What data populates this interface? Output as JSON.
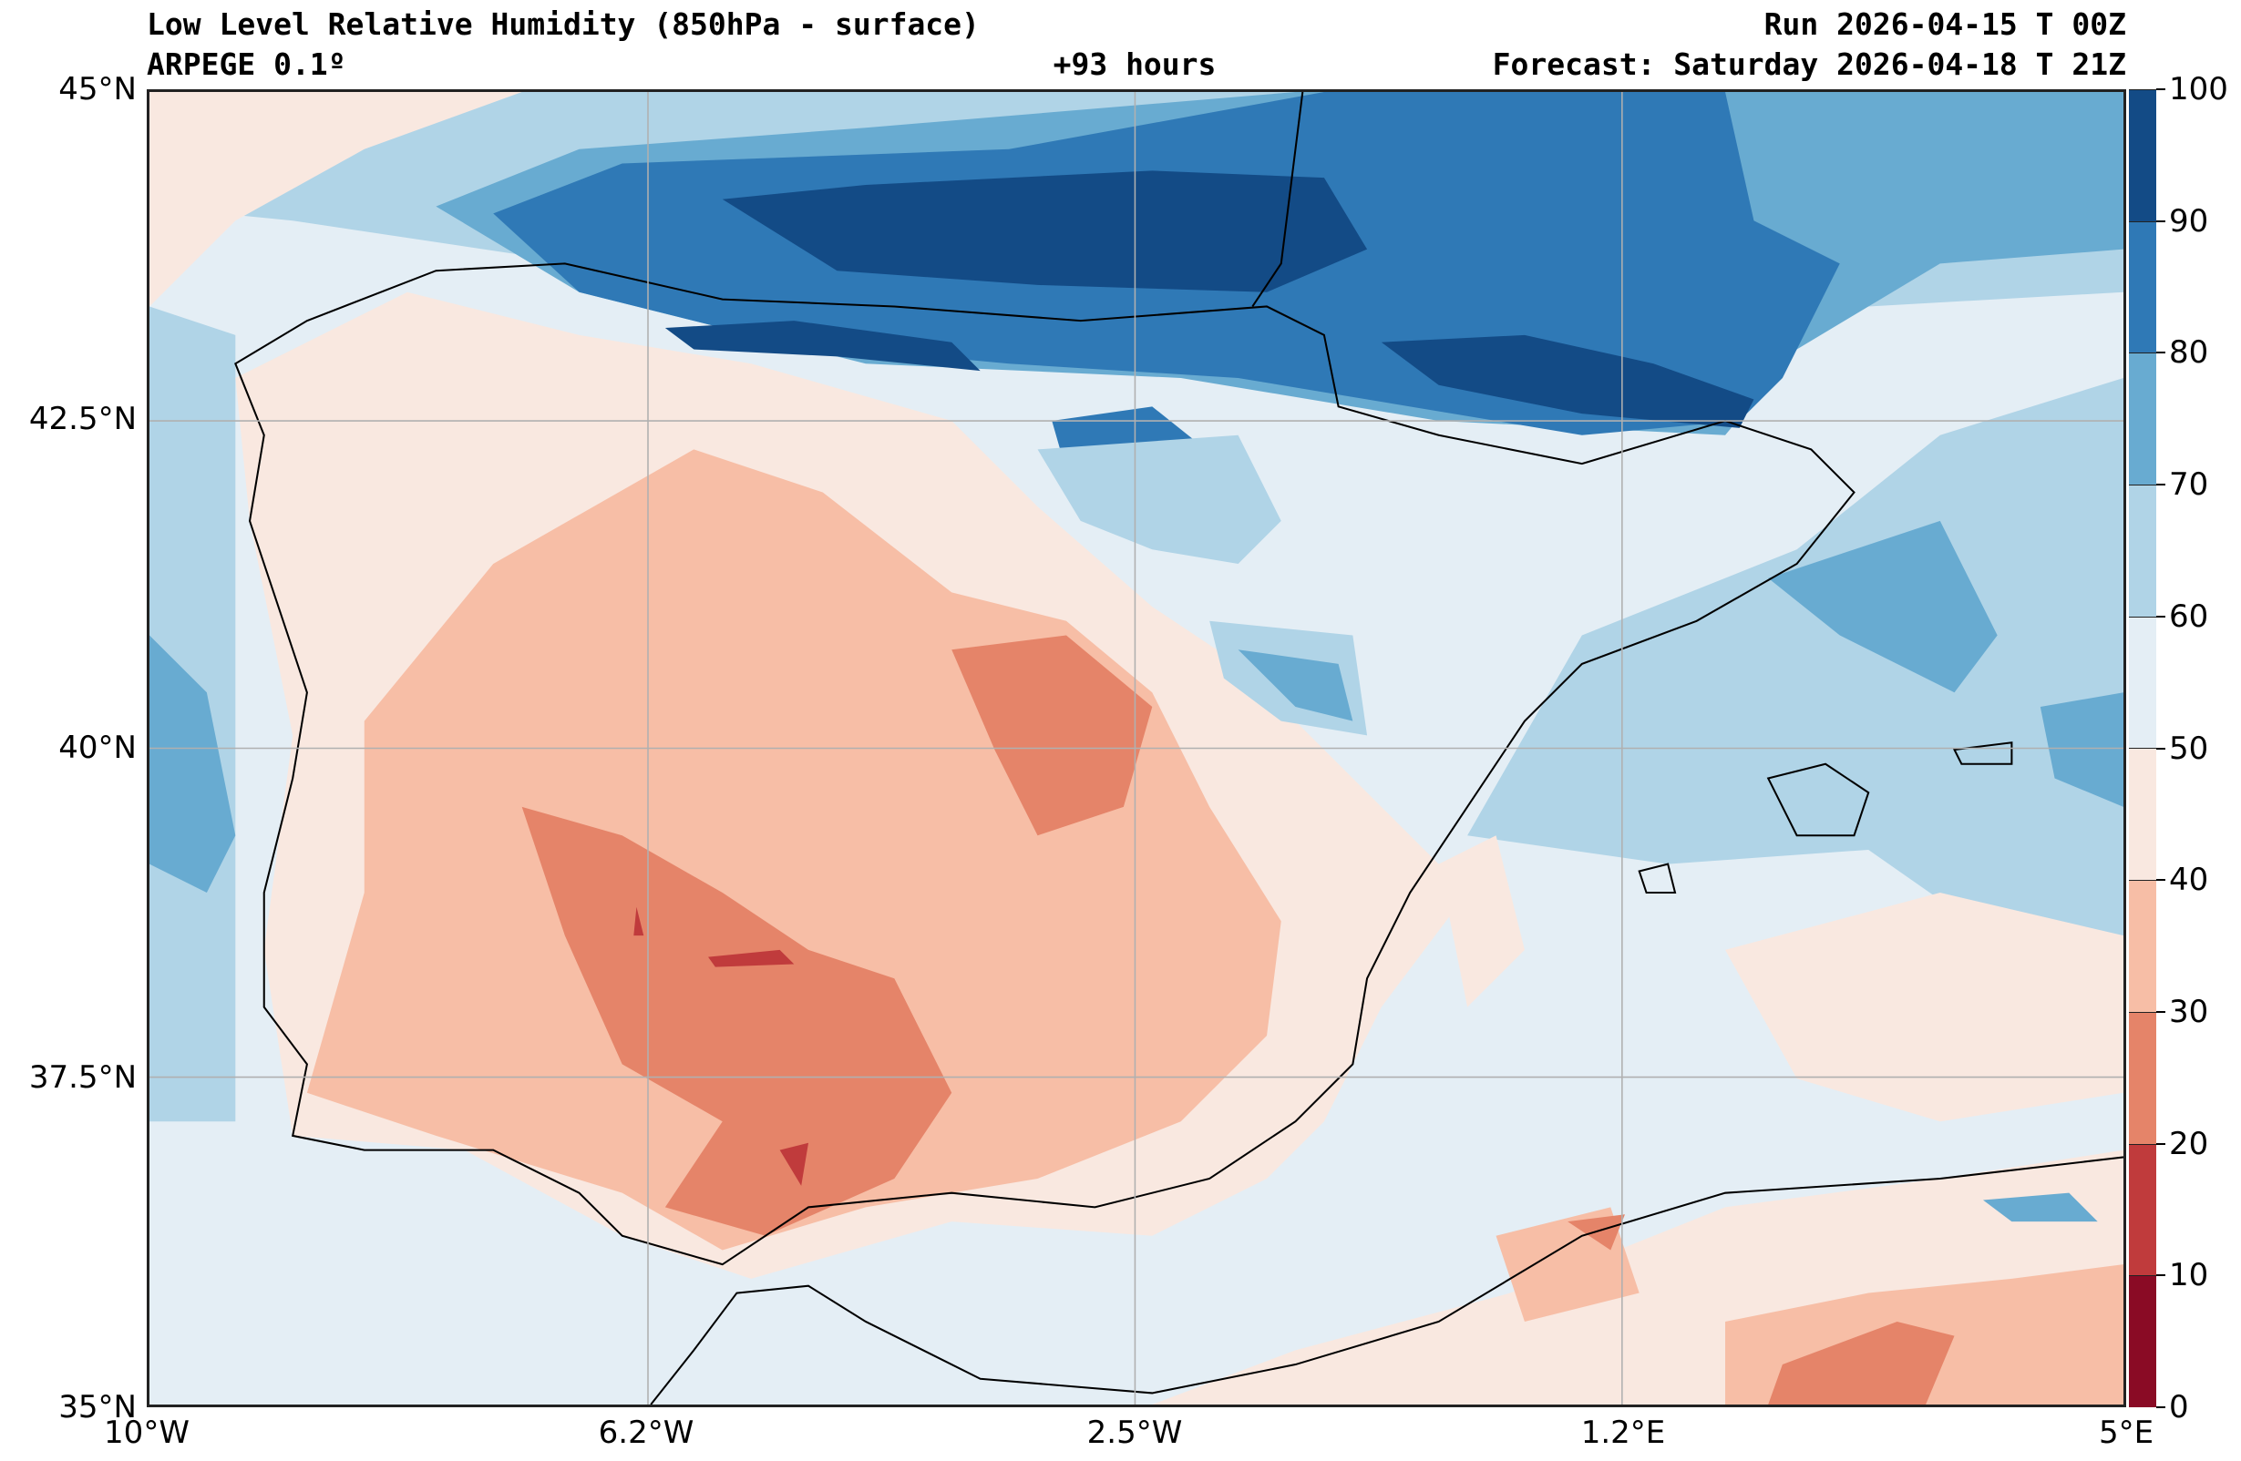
{
  "header": {
    "title": "Low Level Relative Humidity (850hPa - surface)",
    "model": "ARPEGE 0.1º",
    "lead_time": "+93 hours",
    "run": "Run 2026-04-15 T 00Z",
    "forecast": "Forecast: Saturday 2026-04-18 T 21Z"
  },
  "axes": {
    "y_ticks": [
      "45°N",
      "42.5°N",
      "40°N",
      "37.5°N",
      "35°N"
    ],
    "x_ticks": [
      "10°W",
      "6.2°W",
      "2.5°W",
      "1.2°E",
      "5°E"
    ]
  },
  "colorbar": {
    "ticks": [
      "0",
      "10",
      "20",
      "30",
      "40",
      "50",
      "60",
      "70",
      "80",
      "90",
      "100"
    ],
    "colors": [
      "#8a0b25",
      "#c03b3c",
      "#e58469",
      "#f7bea6",
      "#f9e8e0",
      "#e4eef5",
      "#b0d4e7",
      "#68abd1",
      "#2f79b6",
      "#134b86"
    ]
  }
}
